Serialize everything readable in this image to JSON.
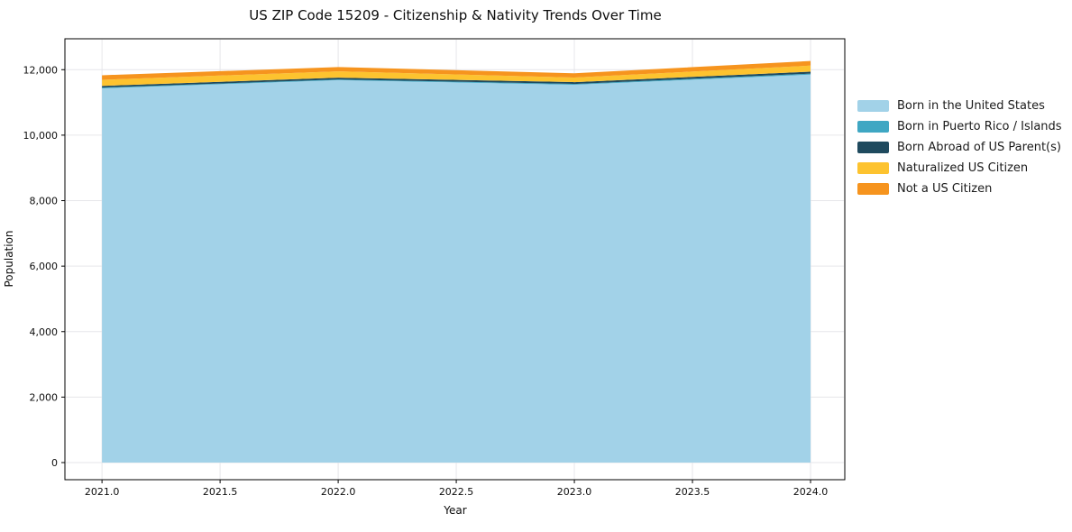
{
  "chart_data": {
    "type": "area",
    "stacked": true,
    "title": "US ZIP Code 15209 - Citizenship & Nativity Trends Over Time",
    "xlabel": "Year",
    "ylabel": "Population",
    "x": [
      2021,
      2022,
      2023,
      2024
    ],
    "series": [
      {
        "name": "Born in the United States",
        "color": "#a2d2e8",
        "values": [
          11430,
          11680,
          11540,
          11850
        ]
      },
      {
        "name": "Born in Puerto Rico / Islands",
        "color": "#3fa7c3",
        "values": [
          25,
          20,
          25,
          30
        ]
      },
      {
        "name": "Born Abroad of US Parent(s)",
        "color": "#1f4a5e",
        "values": [
          50,
          55,
          55,
          60
        ]
      },
      {
        "name": "Naturalized US Citizen",
        "color": "#fdc32f",
        "values": [
          185,
          195,
          140,
          185
        ]
      },
      {
        "name": "Not a US Citizen",
        "color": "#f6941e",
        "values": [
          140,
          130,
          130,
          140
        ]
      }
    ],
    "stack_totals": [
      11830,
      12080,
      11890,
      12265
    ],
    "xticks": {
      "values": [
        2021.0,
        2021.5,
        2022.0,
        2022.5,
        2023.0,
        2023.5,
        2024.0
      ],
      "labels": [
        "2021.0",
        "2021.5",
        "2022.0",
        "2022.5",
        "2023.0",
        "2023.5",
        "2024.0"
      ]
    },
    "yticks": {
      "values": [
        0,
        2000,
        4000,
        6000,
        8000,
        10000,
        12000
      ],
      "labels": [
        "0",
        "2,000",
        "4,000",
        "6,000",
        "8,000",
        "10,000",
        "12,000"
      ]
    },
    "xlim": [
      2020.843,
      2024.145
    ],
    "ylim": [
      -523,
      12944
    ],
    "grid": true,
    "grid_color": "#e6e6ea",
    "frame_color": "#000000",
    "background_color": "#ffffff",
    "legend_position": "outside-right"
  }
}
